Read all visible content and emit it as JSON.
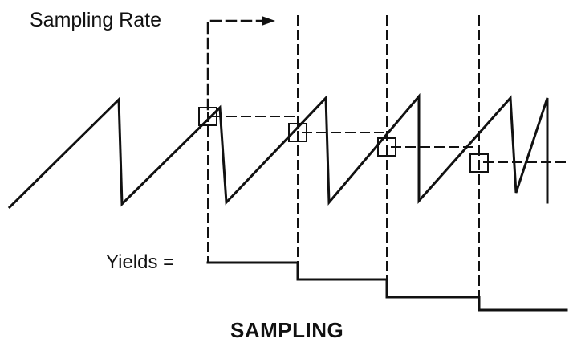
{
  "labels": {
    "sampling_rate": "Sampling Rate",
    "yields": "Yields =",
    "caption": "SAMPLING"
  },
  "colors": {
    "ink": "#111111",
    "background": "#ffffff"
  }
}
